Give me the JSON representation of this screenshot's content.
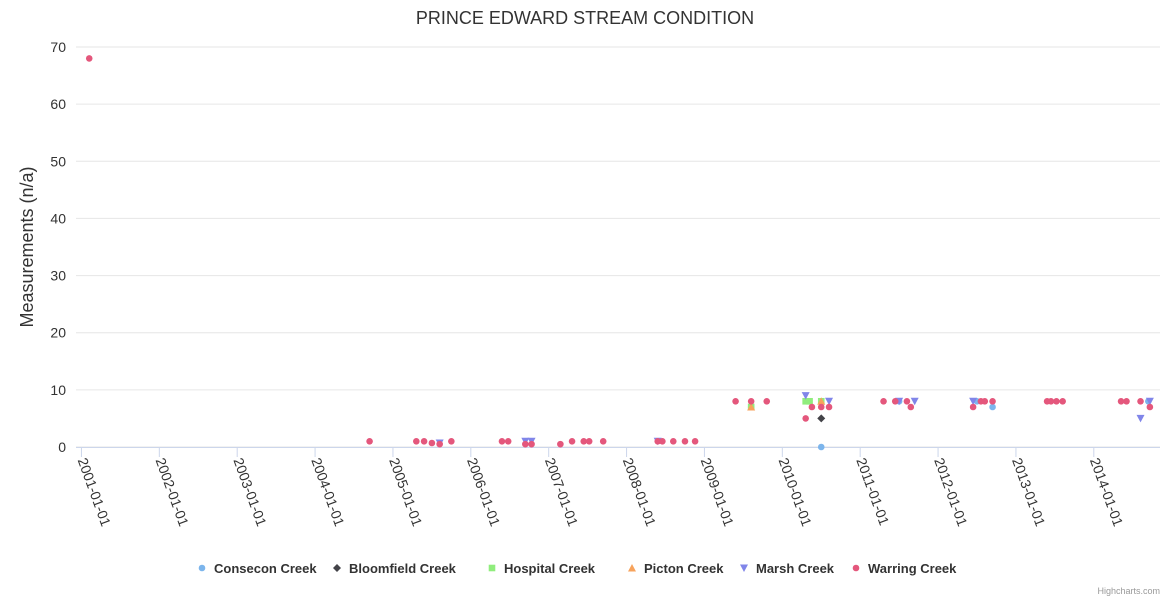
{
  "chart_data": {
    "type": "scatter",
    "title": "PRINCE EDWARD STREAM CONDITION",
    "xlabel": "",
    "ylabel": "Measurements (n/a)",
    "ylim": [
      0,
      70
    ],
    "yticks": [
      0,
      10,
      20,
      30,
      40,
      50,
      60,
      70
    ],
    "xlim": [
      2000.93,
      2014.85
    ],
    "xticks": [
      {
        "label": "2001-01-01",
        "value": 2001.0
      },
      {
        "label": "2002-01-01",
        "value": 2002.0
      },
      {
        "label": "2003-01-01",
        "value": 2003.0
      },
      {
        "label": "2004-01-01",
        "value": 2004.0
      },
      {
        "label": "2005-01-01",
        "value": 2005.0
      },
      {
        "label": "2006-01-01",
        "value": 2006.0
      },
      {
        "label": "2007-01-01",
        "value": 2007.0
      },
      {
        "label": "2008-01-01",
        "value": 2008.0
      },
      {
        "label": "2009-01-01",
        "value": 2009.0
      },
      {
        "label": "2010-01-01",
        "value": 2010.0
      },
      {
        "label": "2011-01-01",
        "value": 2011.0
      },
      {
        "label": "2012-01-01",
        "value": 2012.0
      },
      {
        "label": "2013-01-01",
        "value": 2013.0
      },
      {
        "label": "2014-01-01",
        "value": 2014.0
      }
    ],
    "grid": true,
    "legend_position": "bottom-center",
    "credits": "Highcharts.com",
    "series": [
      {
        "name": "Consecon Creek",
        "symbol": "circle",
        "color": "#7cb5ec",
        "points": [
          [
            2009.6,
            7
          ],
          [
            2010.5,
            0
          ],
          [
            2011.5,
            8
          ],
          [
            2012.5,
            8
          ],
          [
            2012.7,
            7
          ],
          [
            2014.7,
            8
          ]
        ]
      },
      {
        "name": "Bloomfield Creek",
        "symbol": "diamond",
        "color": "#434348",
        "points": [
          [
            2010.5,
            5
          ]
        ]
      },
      {
        "name": "Hospital Creek",
        "symbol": "square",
        "color": "#90ed7d",
        "points": [
          [
            2009.6,
            7
          ],
          [
            2010.3,
            8
          ],
          [
            2010.35,
            8
          ],
          [
            2010.5,
            8
          ]
        ]
      },
      {
        "name": "Picton Creek",
        "symbol": "triangle",
        "color": "#f7a35c",
        "points": [
          [
            2009.6,
            7
          ],
          [
            2010.5,
            8
          ]
        ]
      },
      {
        "name": "Marsh Creek",
        "symbol": "triangle-down",
        "color": "#8085e9",
        "points": [
          [
            2005.6,
            0.7
          ],
          [
            2006.7,
            1
          ],
          [
            2006.78,
            1
          ],
          [
            2008.4,
            1
          ],
          [
            2010.3,
            9
          ],
          [
            2010.6,
            8
          ],
          [
            2011.5,
            8
          ],
          [
            2011.7,
            8
          ],
          [
            2012.45,
            8
          ],
          [
            2014.6,
            5
          ],
          [
            2014.72,
            8
          ]
        ]
      },
      {
        "name": "Warring Creek",
        "symbol": "circle",
        "color": "#e4577c",
        "points": [
          [
            2001.1,
            68
          ],
          [
            2004.7,
            1
          ],
          [
            2005.3,
            1
          ],
          [
            2005.4,
            1
          ],
          [
            2005.5,
            0.7
          ],
          [
            2005.6,
            0.5
          ],
          [
            2005.75,
            1
          ],
          [
            2006.4,
            1
          ],
          [
            2006.48,
            1
          ],
          [
            2006.7,
            0.5
          ],
          [
            2006.78,
            0.5
          ],
          [
            2007.15,
            0.5
          ],
          [
            2007.3,
            1
          ],
          [
            2007.45,
            1
          ],
          [
            2007.52,
            1
          ],
          [
            2007.7,
            1
          ],
          [
            2008.4,
            1
          ],
          [
            2008.46,
            1
          ],
          [
            2008.6,
            1
          ],
          [
            2008.75,
            1
          ],
          [
            2008.88,
            1
          ],
          [
            2009.4,
            8
          ],
          [
            2009.6,
            8
          ],
          [
            2009.8,
            8
          ],
          [
            2010.3,
            5
          ],
          [
            2010.38,
            7
          ],
          [
            2010.5,
            7
          ],
          [
            2010.6,
            7
          ],
          [
            2011.3,
            8
          ],
          [
            2011.45,
            8
          ],
          [
            2011.6,
            8
          ],
          [
            2011.65,
            7
          ],
          [
            2012.45,
            7
          ],
          [
            2012.55,
            8
          ],
          [
            2012.6,
            8
          ],
          [
            2012.7,
            8
          ],
          [
            2013.4,
            8
          ],
          [
            2013.45,
            8
          ],
          [
            2013.52,
            8
          ],
          [
            2013.6,
            8
          ],
          [
            2014.35,
            8
          ],
          [
            2014.42,
            8
          ],
          [
            2014.6,
            8
          ],
          [
            2014.72,
            7
          ]
        ]
      }
    ]
  }
}
